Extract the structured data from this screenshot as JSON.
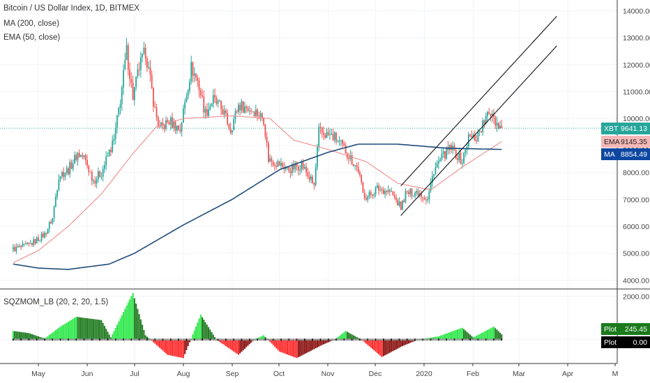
{
  "legend": {
    "main": "Bitcoin / US Dollar Index, 1D, BITMEX",
    "ma": "MA (200, close)",
    "ema": "EMA (50, close)",
    "indicator": "SQZMOM_LB (20, 2, 20, 1.5)"
  },
  "tags": {
    "xbt": {
      "name": "XBT",
      "value": "9641.13",
      "color": "#26a69a"
    },
    "ema": {
      "name": "EMA",
      "value": "9145.35",
      "color": "#f5b7b7",
      "text": "#222"
    },
    "ma": {
      "name": "MA",
      "value": "8854.49",
      "color": "#0d47a1"
    },
    "plot1": {
      "name": "Plot",
      "value": "245.45",
      "color": "#1b7a1b"
    },
    "plot2": {
      "name": "Plot",
      "value": "0.00",
      "color": "#000000"
    }
  },
  "colors": {
    "up": "#26a69a",
    "down": "#ef5350",
    "ma": "#1e4b7a",
    "ema": "#f08a8a",
    "mom_pos_strong": "#2ee84a",
    "mom_pos_weak": "#1f7a1f",
    "mom_neg_strong": "#ff2a2a",
    "mom_neg_weak": "#8a1010",
    "channel": "#111111"
  },
  "chart_data": [
    {
      "type": "candlestick",
      "title": "Bitcoin / US Dollar Index, 1D, BITMEX",
      "x_ticks": [
        "May",
        "Jun",
        "Jul",
        "Aug",
        "Sep",
        "Oct",
        "Nov",
        "Dec",
        "2020",
        "Feb",
        "Mar",
        "Apr",
        "M"
      ],
      "y_ticks": [
        4000,
        5000,
        6000,
        7000,
        8000,
        9000,
        10000,
        11000,
        12000,
        13000,
        14000
      ],
      "y_tick_labels": [
        "4000.00",
        "5000.00",
        "6000.00",
        "7000.00",
        "8000.00",
        "9000.00",
        "10000.00",
        "11000.00",
        "12000.00",
        "13000.00",
        "14000.00"
      ],
      "ylim": [
        3700,
        14400
      ],
      "grid": true,
      "price_path": [
        [
          "2019-04-15",
          5150
        ],
        [
          "2019-04-25",
          5300
        ],
        [
          "2019-05-05",
          5700
        ],
        [
          "2019-05-10",
          6300
        ],
        [
          "2019-05-14",
          7900
        ],
        [
          "2019-05-20",
          8100
        ],
        [
          "2019-05-26",
          8700
        ],
        [
          "2019-05-30",
          8550
        ],
        [
          "2019-06-05",
          7700
        ],
        [
          "2019-06-10",
          8000
        ],
        [
          "2019-06-18",
          9200
        ],
        [
          "2019-06-22",
          10700
        ],
        [
          "2019-06-26",
          12500
        ],
        [
          "2019-06-30",
          10800
        ],
        [
          "2019-07-04",
          11900
        ],
        [
          "2019-07-08",
          12500
        ],
        [
          "2019-07-14",
          10300
        ],
        [
          "2019-07-17",
          9600
        ],
        [
          "2019-07-23",
          9900
        ],
        [
          "2019-07-30",
          9600
        ],
        [
          "2019-08-06",
          11900
        ],
        [
          "2019-08-10",
          11400
        ],
        [
          "2019-08-15",
          10200
        ],
        [
          "2019-08-20",
          10700
        ],
        [
          "2019-08-26",
          10300
        ],
        [
          "2019-08-31",
          9600
        ],
        [
          "2019-09-05",
          10500
        ],
        [
          "2019-09-15",
          10300
        ],
        [
          "2019-09-21",
          10000
        ],
        [
          "2019-09-24",
          8500
        ],
        [
          "2019-10-01",
          8300
        ],
        [
          "2019-10-07",
          8100
        ],
        [
          "2019-10-15",
          8300
        ],
        [
          "2019-10-23",
          7500
        ],
        [
          "2019-10-26",
          9500
        ],
        [
          "2019-11-05",
          9300
        ],
        [
          "2019-11-12",
          8800
        ],
        [
          "2019-11-20",
          8100
        ],
        [
          "2019-11-23",
          7200
        ],
        [
          "2019-11-26",
          7100
        ],
        [
          "2019-12-02",
          7400
        ],
        [
          "2019-12-10",
          7300
        ],
        [
          "2019-12-17",
          6700
        ],
        [
          "2019-12-20",
          7200
        ],
        [
          "2019-12-28",
          7300
        ],
        [
          "2020-01-03",
          7000
        ],
        [
          "2020-01-07",
          8100
        ],
        [
          "2020-01-14",
          8700
        ],
        [
          "2020-01-18",
          8900
        ],
        [
          "2020-01-25",
          8400
        ],
        [
          "2020-01-29",
          9300
        ],
        [
          "2020-02-03",
          9300
        ],
        [
          "2020-02-09",
          10000
        ],
        [
          "2020-02-13",
          10300
        ],
        [
          "2020-02-15",
          9900
        ],
        [
          "2020-02-18",
          9700
        ],
        [
          "2020-02-19",
          9641
        ]
      ],
      "ma200": [
        [
          "2019-04-15",
          4600
        ],
        [
          "2019-05-01",
          4450
        ],
        [
          "2019-05-20",
          4400
        ],
        [
          "2019-06-15",
          4600
        ],
        [
          "2019-07-01",
          5000
        ],
        [
          "2019-08-01",
          6050
        ],
        [
          "2019-09-01",
          7000
        ],
        [
          "2019-10-01",
          8100
        ],
        [
          "2019-11-01",
          8750
        ],
        [
          "2019-11-20",
          9050
        ],
        [
          "2019-12-15",
          9050
        ],
        [
          "2020-01-15",
          8900
        ],
        [
          "2020-02-19",
          8854
        ]
      ],
      "ema50": [
        [
          "2019-04-15",
          4650
        ],
        [
          "2019-05-01",
          5100
        ],
        [
          "2019-05-20",
          6000
        ],
        [
          "2019-06-10",
          7200
        ],
        [
          "2019-06-30",
          8700
        ],
        [
          "2019-07-15",
          9700
        ],
        [
          "2019-08-01",
          10000
        ],
        [
          "2019-09-01",
          10100
        ],
        [
          "2019-09-25",
          10000
        ],
        [
          "2019-10-10",
          9200
        ],
        [
          "2019-11-01",
          8850
        ],
        [
          "2019-11-25",
          8400
        ],
        [
          "2019-12-15",
          7600
        ],
        [
          "2020-01-05",
          7350
        ],
        [
          "2020-01-25",
          8200
        ],
        [
          "2020-02-19",
          9145
        ]
      ],
      "channel_lines": [
        {
          "from": [
            "2019-12-17",
            7500
          ],
          "to": [
            "2020-03-25",
            13800
          ]
        },
        {
          "from": [
            "2019-12-17",
            6400
          ],
          "to": [
            "2020-03-25",
            12700
          ]
        }
      ],
      "current_price": 9641.13
    },
    {
      "type": "bar",
      "title": "SQZMOM_LB (20, 2, 20, 1.5)",
      "y_ticks": [
        0,
        2000
      ],
      "y_tick_labels": [
        "",
        "2000.00"
      ],
      "ylim": [
        -1100,
        2300
      ],
      "momentum_path": [
        [
          "2019-04-15",
          400
        ],
        [
          "2019-04-25",
          300
        ],
        [
          "2019-05-05",
          50
        ],
        [
          "2019-05-15",
          600
        ],
        [
          "2019-05-25",
          1050
        ],
        [
          "2019-06-10",
          900
        ],
        [
          "2019-06-16",
          100
        ],
        [
          "2019-06-30",
          2150
        ],
        [
          "2019-07-08",
          200
        ],
        [
          "2019-07-22",
          -700
        ],
        [
          "2019-08-01",
          -850
        ],
        [
          "2019-08-12",
          1150
        ],
        [
          "2019-08-22",
          0
        ],
        [
          "2019-09-05",
          -700
        ],
        [
          "2019-09-15",
          0
        ],
        [
          "2019-09-21",
          200
        ],
        [
          "2019-10-01",
          -550
        ],
        [
          "2019-10-12",
          -850
        ],
        [
          "2019-10-28",
          -250
        ],
        [
          "2019-11-05",
          0
        ],
        [
          "2019-11-12",
          400
        ],
        [
          "2019-11-22",
          0
        ],
        [
          "2019-12-05",
          -800
        ],
        [
          "2019-12-18",
          -300
        ],
        [
          "2019-12-28",
          0
        ],
        [
          "2020-01-10",
          150
        ],
        [
          "2020-01-25",
          550
        ],
        [
          "2020-02-01",
          100
        ],
        [
          "2020-02-14",
          600
        ],
        [
          "2020-02-19",
          245
        ]
      ],
      "current_value": 245.45,
      "zero_line": 0
    }
  ]
}
